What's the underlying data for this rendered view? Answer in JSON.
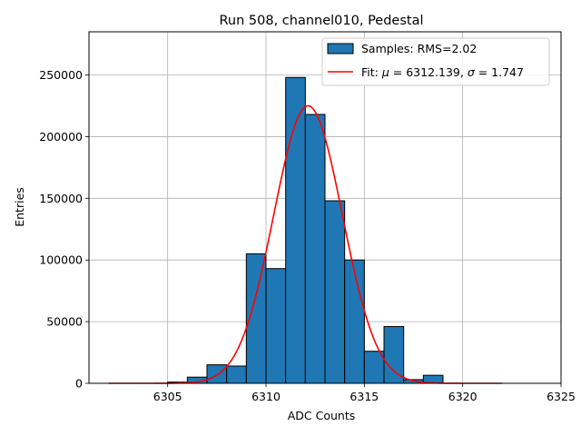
{
  "chart_data": {
    "type": "bar",
    "title": "Run 508, channel010, Pedestal",
    "xlabel": "ADC Counts",
    "ylabel": "Entries",
    "xlim": [
      6301,
      6325
    ],
    "ylim": [
      0,
      285000
    ],
    "grid": true,
    "legend_position": "top-right",
    "xticks": [
      6305,
      6310,
      6315,
      6320,
      6325
    ],
    "yticks": [
      0,
      50000,
      100000,
      150000,
      200000,
      250000
    ],
    "bin_width": 1,
    "series": [
      {
        "name": "Samples: RMS=2.02",
        "kind": "histogram",
        "color": "#1f77b4",
        "edgecolor": "#000000",
        "bins": [
          {
            "left": 6305,
            "value": 1000
          },
          {
            "left": 6306,
            "value": 5000
          },
          {
            "left": 6307,
            "value": 15000
          },
          {
            "left": 6308,
            "value": 14000
          },
          {
            "left": 6309,
            "value": 105000
          },
          {
            "left": 6310,
            "value": 93000
          },
          {
            "left": 6311,
            "value": 248000
          },
          {
            "left": 6312,
            "value": 218000
          },
          {
            "left": 6313,
            "value": 148000
          },
          {
            "left": 6314,
            "value": 100000
          },
          {
            "left": 6315,
            "value": 26000
          },
          {
            "left": 6316,
            "value": 46000
          },
          {
            "left": 6317,
            "value": 3000
          },
          {
            "left": 6318,
            "value": 6500
          }
        ]
      },
      {
        "name": "Fit: μ = 6312.139, σ = 1.747",
        "kind": "gaussian",
        "color": "#ff0000",
        "mu": 6312.139,
        "sigma": 1.747,
        "amplitude": 225000,
        "x_range": [
          6302,
          6322
        ]
      }
    ],
    "legend": {
      "hist_label": "Samples: RMS=2.02",
      "fit_label_prefix": "Fit: ",
      "fit_mu_symbol": "μ",
      "fit_mu_text": " = 6312.139, ",
      "fit_sigma_symbol": "σ",
      "fit_sigma_text": " = 1.747"
    }
  }
}
